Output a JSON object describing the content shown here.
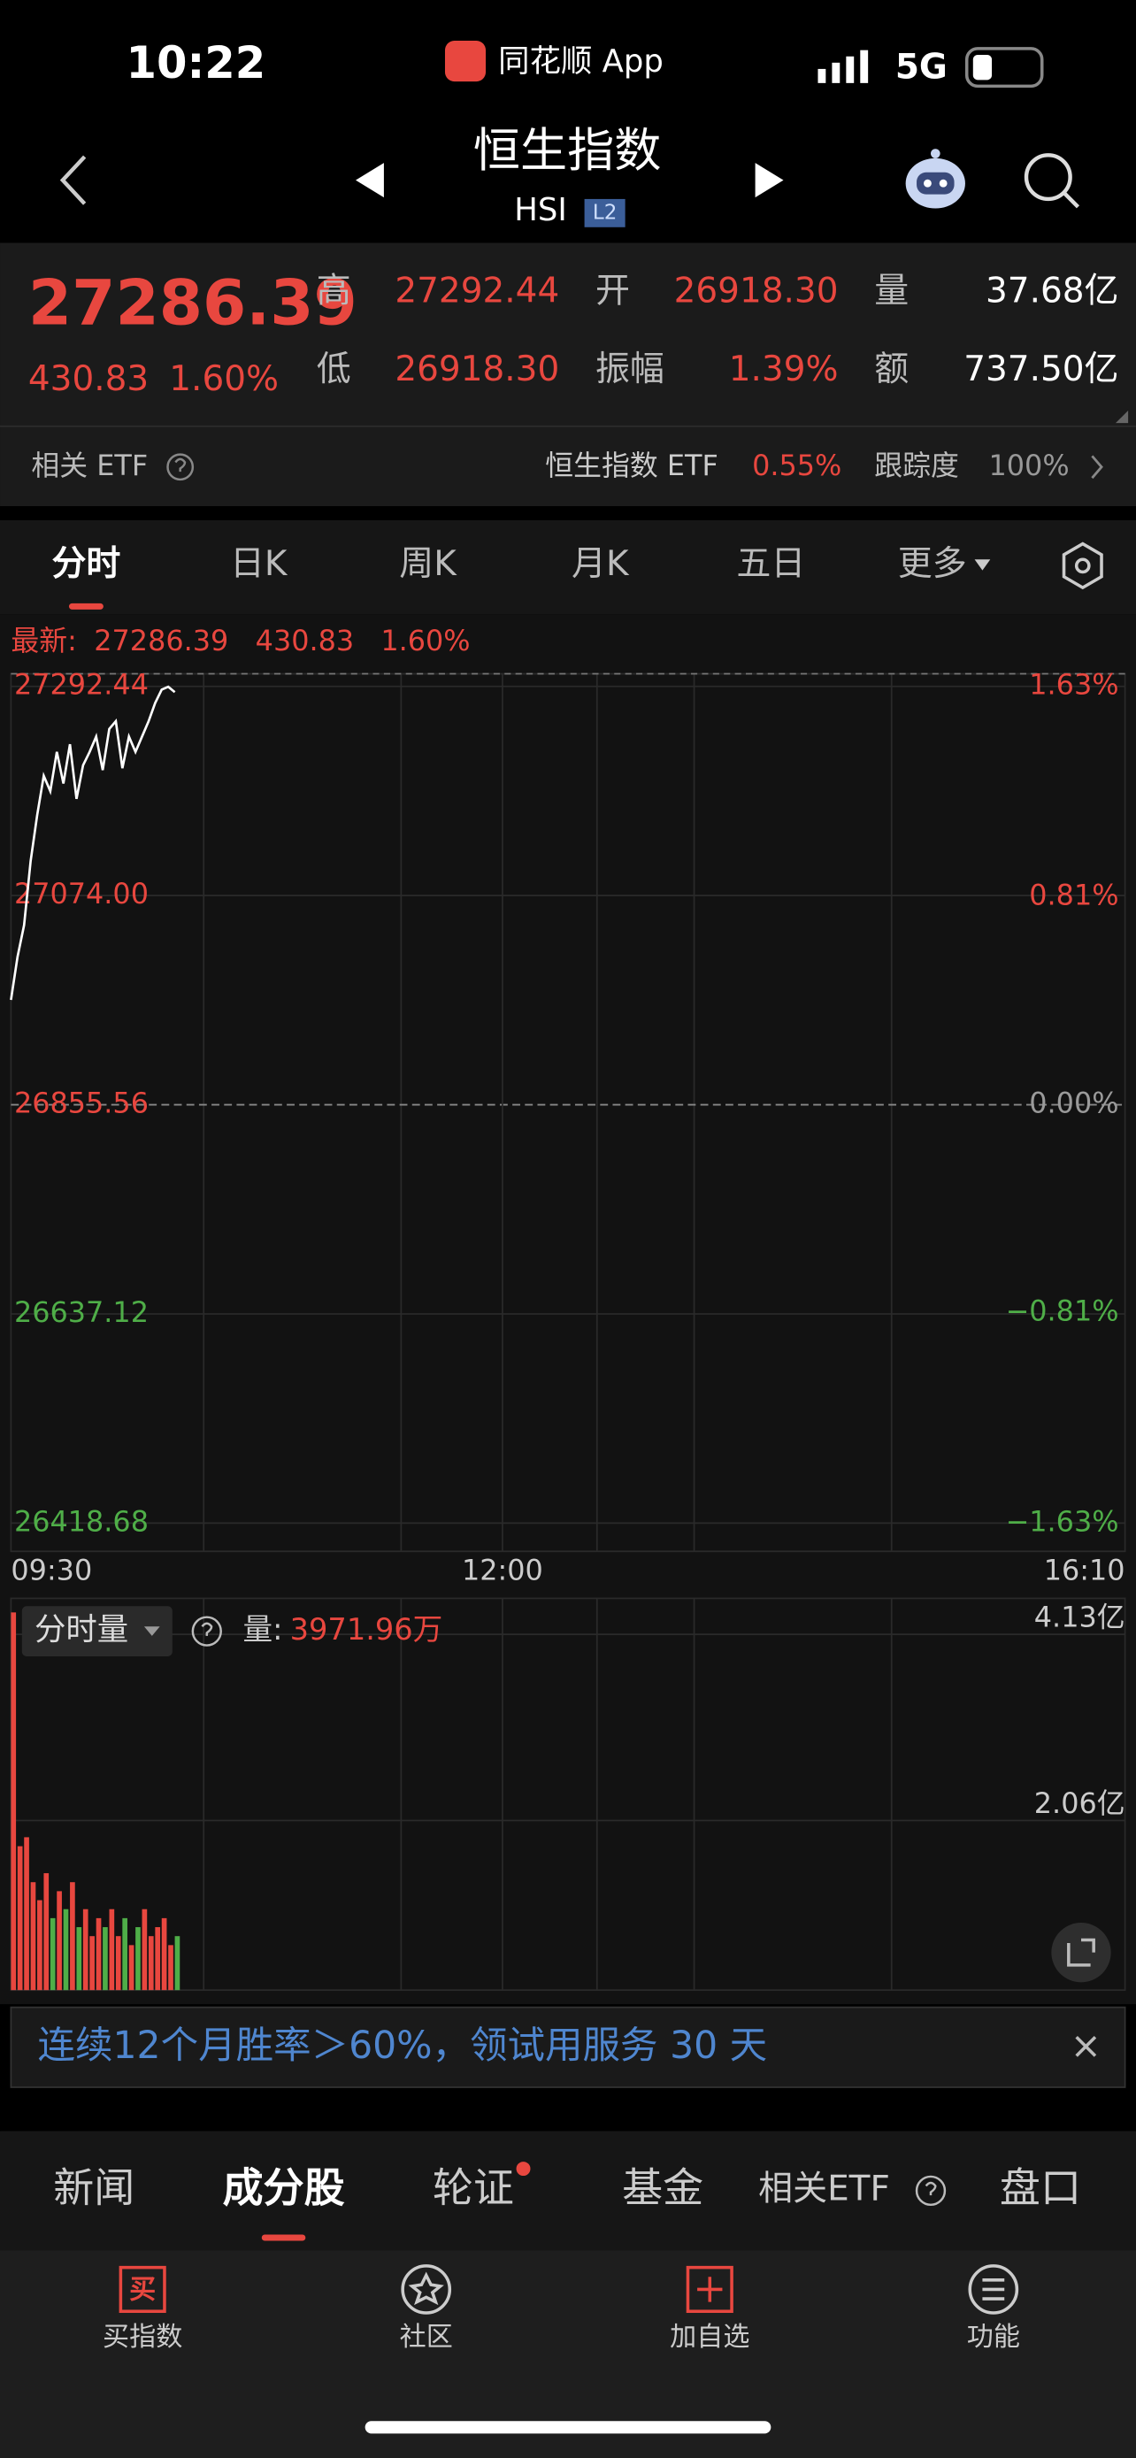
{
  "status": {
    "time": "10:22",
    "app": "同花顺 App",
    "network": "5G"
  },
  "header": {
    "title": "恒生指数",
    "code": "HSI",
    "badge": "L2"
  },
  "quote": {
    "price": "27286.39",
    "change": "430.83",
    "change_pct": "1.60%",
    "fields": [
      {
        "label": "高",
        "value": "27292.44"
      },
      {
        "label": "开",
        "value": "26918.30"
      },
      {
        "label": "量",
        "value": "37.68亿"
      },
      {
        "label": "低",
        "value": "26918.30"
      },
      {
        "label": "振幅",
        "value": "1.39%"
      },
      {
        "label": "额",
        "value": "737.50亿"
      }
    ]
  },
  "etf": {
    "label": "相关 ETF",
    "name": "恒生指数 ETF",
    "change_pct": "0.55%",
    "tracking_label": "跟踪度",
    "tracking": "100%"
  },
  "tabs": {
    "items": [
      "分时",
      "日K",
      "周K",
      "月K",
      "五日",
      "更多"
    ],
    "active": 0
  },
  "chart_data": [
    {
      "type": "line",
      "latest_label": "最新:",
      "latest": [
        "27286.39",
        "430.83",
        "1.60%"
      ],
      "x": [
        0,
        2,
        4,
        6,
        8,
        10,
        12,
        14,
        16,
        18,
        20,
        22,
        24,
        26,
        28,
        30,
        32,
        34,
        36,
        38,
        40,
        42,
        44,
        46,
        48,
        50
      ],
      "values": [
        26965,
        27010,
        27043,
        27110,
        27158,
        27199,
        27183,
        27224,
        27191,
        27232,
        27175,
        27210,
        27224,
        27240,
        27205,
        27248,
        27256,
        27207,
        27240,
        27224,
        27240,
        27256,
        27275,
        27289,
        27292,
        27286.39
      ],
      "color": "#ffffff",
      "xlim": [
        0,
        340
      ],
      "xticks": [
        {
          "value": 0,
          "label": "09:30"
        },
        {
          "value": 150,
          "label": "12:00"
        },
        {
          "value": 340,
          "label": "16:10"
        }
      ],
      "ylim": [
        26418.68,
        27292.44
      ],
      "yticks": [
        27292.44,
        {
          "value": 27074,
          "label": "27074.00"
        },
        26855.56,
        26637.12,
        26418.68
      ],
      "y2lim": [
        -1.63,
        1.63
      ],
      "y2ticks": [
        {
          "value": 1.63,
          "label": "1.63%"
        },
        {
          "value": 0.81,
          "label": "0.81%"
        },
        {
          "value": 0,
          "label": "0.00%"
        },
        {
          "value": -0.81,
          "label": "−0.81%"
        },
        {
          "value": -1.63,
          "label": "−1.63%"
        }
      ],
      "up_color": "#e8473f",
      "down_color": "#4fae48",
      "flat_color": "#9a9a9a"
    },
    {
      "type": "bar",
      "label": "分时量",
      "value_label": "量:",
      "value": "3971.96万",
      "x": [
        0,
        2,
        4,
        6,
        8,
        10,
        12,
        14,
        16,
        18,
        20,
        22,
        24,
        26,
        28,
        30,
        32,
        34,
        36,
        38,
        40,
        42,
        44,
        46,
        48,
        50
      ],
      "values": [
        4.2,
        1.6,
        1.7,
        1.2,
        1.0,
        1.3,
        0.8,
        1.1,
        0.9,
        1.2,
        0.7,
        0.9,
        0.6,
        0.8,
        0.7,
        0.9,
        0.6,
        0.8,
        0.5,
        0.7,
        0.9,
        0.6,
        0.7,
        0.8,
        0.5,
        0.6
      ],
      "xlim": [
        0,
        340
      ],
      "ylim": [
        0,
        4.13
      ],
      "yticks": [
        {
          "value": 4.13,
          "label": "4.13亿"
        },
        {
          "value": 2.06,
          "label": "2.06亿"
        }
      ]
    }
  ],
  "banner": {
    "text": "连续12个月胜率＞60%，领试用服务 30 天"
  },
  "bottom_tabs": {
    "items": [
      "新闻",
      "成分股",
      "轮证",
      "基金",
      "相关ETF",
      "盘口"
    ],
    "active": 1
  },
  "nav": {
    "items": [
      {
        "icon": "买",
        "label": "买指数"
      },
      {
        "label": "社区"
      },
      {
        "label": "加自选"
      },
      {
        "label": "功能"
      }
    ]
  }
}
